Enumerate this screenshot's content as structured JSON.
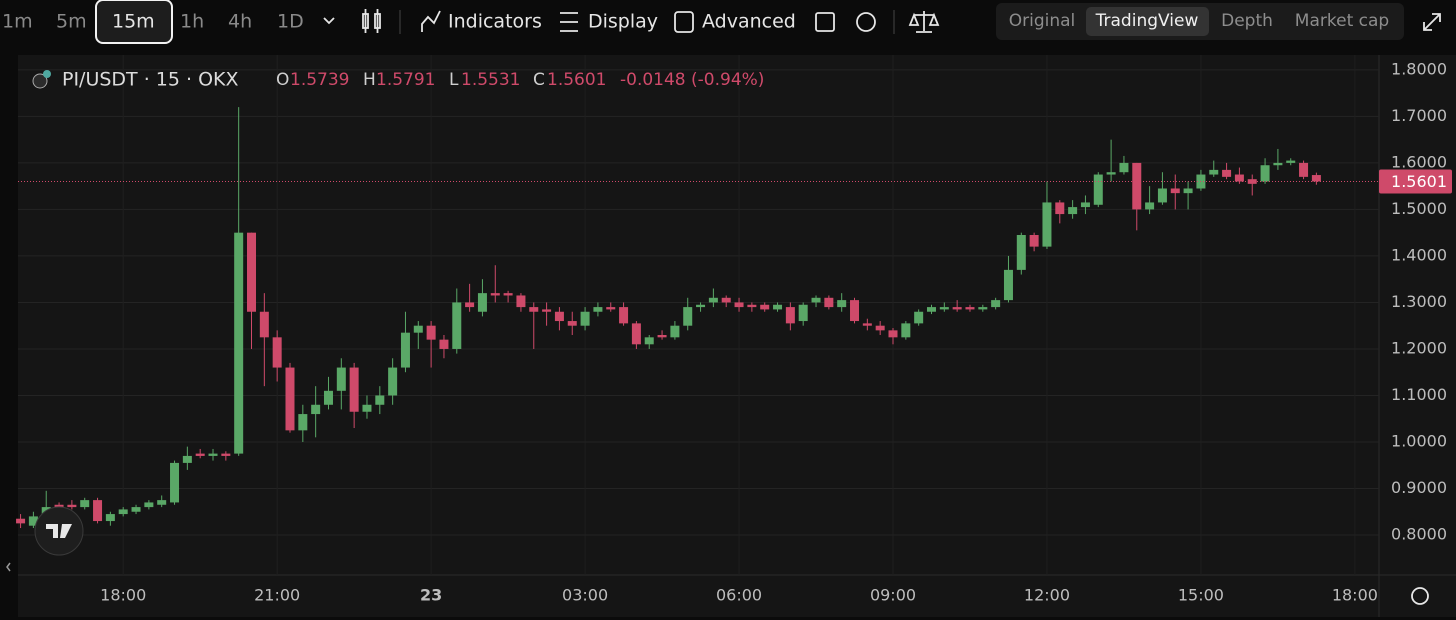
{
  "toolbar": {
    "intervals": [
      "1m",
      "5m",
      "15m",
      "1h",
      "4h",
      "1D"
    ],
    "buttons": [
      "Indicators",
      "Display",
      "Advanced"
    ],
    "views": [
      "Original",
      "TradingView",
      "Depth",
      "Market cap"
    ]
  },
  "chart_data": {
    "type": "candlestick",
    "title": "PI/USDT · 15 · OKX",
    "ohlc_labels": [
      "O",
      "H",
      "L",
      "C"
    ],
    "change_label": "-0.0148 (-0.94%)",
    "up_color": "#5aa867",
    "down_color": "#cf4a6a",
    "grid": true,
    "xlim": [
      15.95,
      42.47
    ],
    "xticks": [
      {
        "value": 18,
        "label": "18:00"
      },
      {
        "value": 21,
        "label": "21:00"
      },
      {
        "value": 24,
        "label": "23"
      },
      {
        "value": 27,
        "label": "03:00"
      },
      {
        "value": 30,
        "label": "06:00"
      },
      {
        "value": 33,
        "label": "09:00"
      },
      {
        "value": 36,
        "label": "12:00"
      },
      {
        "value": 39,
        "label": "15:00"
      },
      {
        "value": 42,
        "label": "18:00"
      }
    ],
    "ylim": [
      0.714,
      1.832
    ],
    "yticks": [
      {
        "value": 0.8,
        "label": "0.8000"
      },
      {
        "value": 0.9,
        "label": "0.9000"
      },
      {
        "value": 1.0,
        "label": "1.0000"
      },
      {
        "value": 1.1,
        "label": "1.1000"
      },
      {
        "value": 1.2,
        "label": "1.2000"
      },
      {
        "value": 1.3,
        "label": "1.3000"
      },
      {
        "value": 1.4,
        "label": "1.4000"
      },
      {
        "value": 1.5,
        "label": "1.5000"
      },
      {
        "value": 1.6,
        "label": "1.6000"
      },
      {
        "value": 1.7,
        "label": "1.7000"
      },
      {
        "value": 1.8,
        "label": "1.8000"
      }
    ],
    "x": [
      16,
      16.25,
      16.5,
      16.75,
      17,
      17.25,
      17.5,
      17.75,
      18,
      18.25,
      18.5,
      18.75,
      19,
      19.25,
      19.5,
      19.75,
      20,
      20.25,
      20.5,
      20.75,
      21,
      21.25,
      21.5,
      21.75,
      22,
      22.25,
      22.5,
      22.75,
      23,
      23.25,
      23.5,
      23.75,
      24,
      24.25,
      24.5,
      24.75,
      25,
      25.25,
      25.5,
      25.75,
      26,
      26.25,
      26.5,
      26.75,
      27,
      27.25,
      27.5,
      27.75,
      28,
      28.25,
      28.5,
      28.75,
      29,
      29.25,
      29.5,
      29.75,
      30,
      30.25,
      30.5,
      30.75,
      31,
      31.25,
      31.5,
      31.75,
      32,
      32.25,
      32.5,
      32.75,
      33,
      33.25,
      33.5,
      33.75,
      34,
      34.25,
      34.5,
      34.75,
      35,
      35.25,
      35.5,
      35.75,
      36,
      36.25,
      36.5,
      36.75,
      37,
      37.25,
      37.5,
      37.75,
      38,
      38.25,
      38.5,
      38.75,
      39,
      39.25,
      39.5,
      39.75,
      40,
      40.25,
      40.5,
      40.75,
      41,
      41.25
    ],
    "open": [
      0.835,
      0.82,
      0.84,
      0.865,
      0.865,
      0.86,
      0.875,
      0.83,
      0.845,
      0.85,
      0.86,
      0.865,
      0.87,
      0.955,
      0.975,
      0.97,
      0.975,
      0.975,
      1.45,
      1.28,
      1.225,
      1.16,
      1.025,
      1.06,
      1.08,
      1.11,
      1.16,
      1.065,
      1.08,
      1.1,
      1.16,
      1.235,
      1.25,
      1.22,
      1.2,
      1.3,
      1.28,
      1.32,
      1.32,
      1.315,
      1.29,
      1.285,
      1.28,
      1.26,
      1.25,
      1.28,
      1.29,
      1.29,
      1.255,
      1.21,
      1.23,
      1.225,
      1.25,
      1.29,
      1.3,
      1.31,
      1.3,
      1.295,
      1.295,
      1.285,
      1.29,
      1.26,
      1.3,
      1.31,
      1.29,
      1.305,
      1.255,
      1.25,
      1.24,
      1.225,
      1.255,
      1.28,
      1.285,
      1.29,
      1.29,
      1.285,
      1.29,
      1.305,
      1.37,
      1.445,
      1.42,
      1.515,
      1.49,
      1.505,
      1.51,
      1.575,
      1.58,
      1.6,
      1.5,
      1.515,
      1.545,
      1.535,
      1.545,
      1.575,
      1.585,
      1.575,
      1.565,
      1.56,
      1.595,
      1.6,
      1.6,
      1.5739
    ],
    "high": [
      0.845,
      0.85,
      0.895,
      0.87,
      0.875,
      0.88,
      0.88,
      0.85,
      0.86,
      0.865,
      0.875,
      0.885,
      0.96,
      0.99,
      0.985,
      0.985,
      0.98,
      1.72,
      1.45,
      1.32,
      1.24,
      1.17,
      1.08,
      1.12,
      1.14,
      1.18,
      1.17,
      1.1,
      1.12,
      1.18,
      1.28,
      1.26,
      1.26,
      1.23,
      1.33,
      1.34,
      1.35,
      1.38,
      1.325,
      1.32,
      1.3,
      1.3,
      1.29,
      1.28,
      1.29,
      1.3,
      1.3,
      1.3,
      1.26,
      1.23,
      1.24,
      1.26,
      1.31,
      1.3,
      1.33,
      1.315,
      1.31,
      1.3,
      1.3,
      1.3,
      1.3,
      1.3,
      1.315,
      1.315,
      1.32,
      1.31,
      1.265,
      1.26,
      1.245,
      1.26,
      1.285,
      1.295,
      1.3,
      1.305,
      1.295,
      1.295,
      1.31,
      1.4,
      1.45,
      1.45,
      1.56,
      1.52,
      1.52,
      1.53,
      1.58,
      1.65,
      1.615,
      1.6,
      1.55,
      1.58,
      1.575,
      1.56,
      1.585,
      1.605,
      1.6,
      1.59,
      1.575,
      1.61,
      1.63,
      1.61,
      1.605,
      1.5791
    ],
    "low": [
      0.815,
      0.815,
      0.83,
      0.855,
      0.855,
      0.855,
      0.825,
      0.82,
      0.84,
      0.845,
      0.855,
      0.86,
      0.865,
      0.94,
      0.965,
      0.96,
      0.96,
      0.97,
      1.2,
      1.12,
      1.13,
      1.02,
      1.0,
      1.01,
      1.07,
      1.07,
      1.03,
      1.05,
      1.06,
      1.08,
      1.15,
      1.2,
      1.16,
      1.18,
      1.19,
      1.28,
      1.27,
      1.3,
      1.3,
      1.28,
      1.2,
      1.25,
      1.24,
      1.23,
      1.24,
      1.27,
      1.28,
      1.25,
      1.2,
      1.2,
      1.22,
      1.22,
      1.24,
      1.28,
      1.29,
      1.29,
      1.28,
      1.28,
      1.28,
      1.28,
      1.24,
      1.25,
      1.29,
      1.285,
      1.28,
      1.255,
      1.24,
      1.23,
      1.21,
      1.22,
      1.25,
      1.275,
      1.28,
      1.28,
      1.28,
      1.28,
      1.285,
      1.3,
      1.36,
      1.41,
      1.415,
      1.47,
      1.48,
      1.49,
      1.505,
      1.56,
      1.575,
      1.455,
      1.49,
      1.51,
      1.5,
      1.5,
      1.54,
      1.57,
      1.565,
      1.555,
      1.53,
      1.555,
      1.585,
      1.595,
      1.565,
      1.5531
    ],
    "close": [
      0.825,
      0.84,
      0.86,
      0.86,
      0.86,
      0.875,
      0.83,
      0.845,
      0.855,
      0.86,
      0.87,
      0.875,
      0.955,
      0.97,
      0.97,
      0.975,
      0.97,
      1.45,
      1.28,
      1.225,
      1.16,
      1.025,
      1.06,
      1.08,
      1.11,
      1.16,
      1.065,
      1.08,
      1.1,
      1.16,
      1.235,
      1.25,
      1.22,
      1.2,
      1.3,
      1.29,
      1.32,
      1.315,
      1.315,
      1.29,
      1.28,
      1.28,
      1.26,
      1.25,
      1.28,
      1.29,
      1.285,
      1.255,
      1.21,
      1.225,
      1.225,
      1.25,
      1.29,
      1.295,
      1.31,
      1.3,
      1.29,
      1.29,
      1.285,
      1.295,
      1.255,
      1.295,
      1.31,
      1.29,
      1.305,
      1.26,
      1.25,
      1.24,
      1.225,
      1.255,
      1.28,
      1.29,
      1.29,
      1.285,
      1.285,
      1.29,
      1.305,
      1.37,
      1.445,
      1.42,
      1.515,
      1.49,
      1.505,
      1.515,
      1.575,
      1.58,
      1.6,
      1.5,
      1.515,
      1.545,
      1.535,
      1.545,
      1.575,
      1.585,
      1.57,
      1.56,
      1.555,
      1.595,
      1.6,
      1.605,
      1.57,
      1.5601
    ]
  }
}
